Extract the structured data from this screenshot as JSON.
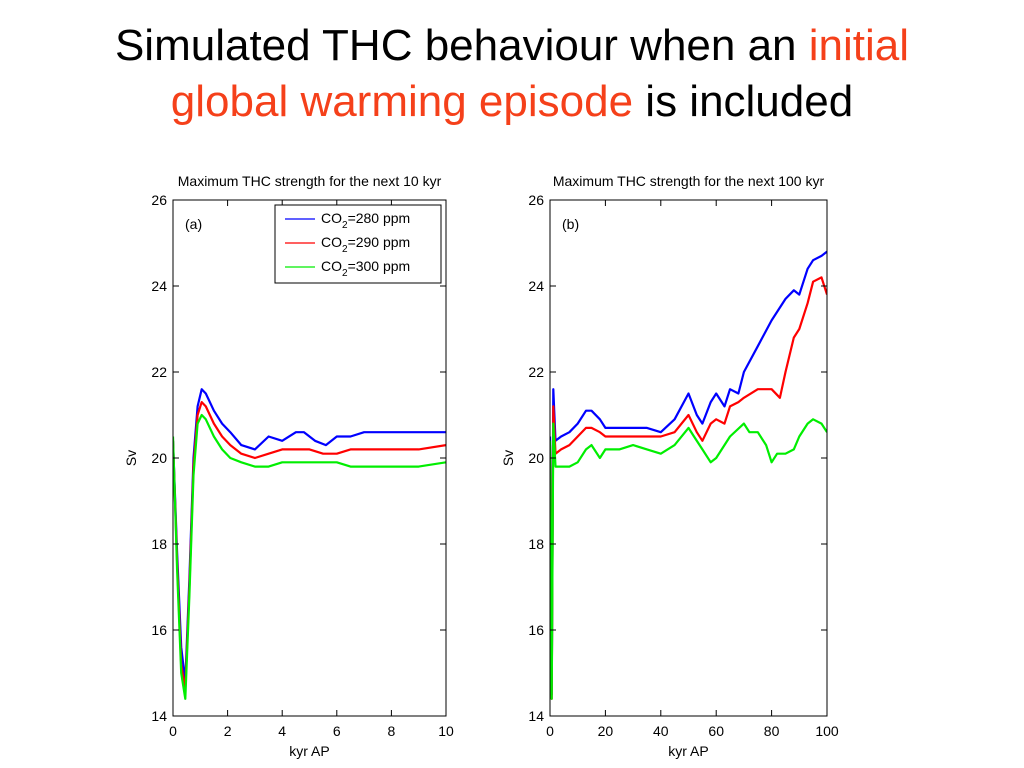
{
  "slide": {
    "title_line1_prefix": "Simulated THC behaviour when an ",
    "title_line1_highlight": "initial",
    "title_line2_highlight": "global warming episode",
    "title_line2_suffix": " is included",
    "highlight_color": "#f5401a"
  },
  "chart_data": [
    {
      "type": "line",
      "title": "Maximum THC strength for the next 10 kyr",
      "panel_label": "(a)",
      "xlabel": "kyr AP",
      "ylabel": "Sv",
      "xlim": [
        0,
        10
      ],
      "ylim": [
        14,
        26
      ],
      "xticks": [
        0,
        2,
        4,
        6,
        8,
        10
      ],
      "yticks": [
        14,
        16,
        18,
        20,
        22,
        24,
        26
      ],
      "grid": false,
      "legend": "top-right",
      "series": [
        {
          "legend_sub": "2",
          "legend_rest": "=280 ppm",
          "legend_base": "CO",
          "color": "#0000ff",
          "x": [
            0,
            0.15,
            0.3,
            0.45,
            0.6,
            0.75,
            0.9,
            1.05,
            1.2,
            1.5,
            1.8,
            2.1,
            2.5,
            3.0,
            3.5,
            4.0,
            4.5,
            4.8,
            5.2,
            5.6,
            6.0,
            6.5,
            7.0,
            8.0,
            9.0,
            10.0
          ],
          "y": [
            20.4,
            17.8,
            15.6,
            14.8,
            17.2,
            20.0,
            21.2,
            21.6,
            21.5,
            21.1,
            20.8,
            20.6,
            20.3,
            20.2,
            20.5,
            20.4,
            20.6,
            20.6,
            20.4,
            20.3,
            20.5,
            20.5,
            20.6,
            20.6,
            20.6,
            20.6
          ]
        },
        {
          "legend_base": "CO",
          "legend_sub": "2",
          "legend_rest": "=290 ppm",
          "color": "#ff0000",
          "x": [
            0,
            0.15,
            0.3,
            0.45,
            0.6,
            0.75,
            0.9,
            1.05,
            1.2,
            1.5,
            1.8,
            2.1,
            2.5,
            3.0,
            3.5,
            4.0,
            4.5,
            5.0,
            5.5,
            6.0,
            6.5,
            7.0,
            8.0,
            9.0,
            10.0
          ],
          "y": [
            20.4,
            17.6,
            15.2,
            14.6,
            17.0,
            19.8,
            21.0,
            21.3,
            21.2,
            20.8,
            20.5,
            20.3,
            20.1,
            20.0,
            20.1,
            20.2,
            20.2,
            20.2,
            20.1,
            20.1,
            20.2,
            20.2,
            20.2,
            20.2,
            20.3
          ]
        },
        {
          "legend_base": "CO",
          "legend_sub": "2",
          "legend_rest": "=300 ppm",
          "color": "#00ee00",
          "x": [
            0,
            0.15,
            0.3,
            0.45,
            0.6,
            0.75,
            0.9,
            1.05,
            1.2,
            1.5,
            1.8,
            2.1,
            2.5,
            3.0,
            3.5,
            4.0,
            4.5,
            5.0,
            5.5,
            6.0,
            6.5,
            7.0,
            8.0,
            9.0,
            10.0
          ],
          "y": [
            20.5,
            17.4,
            15.0,
            14.4,
            16.8,
            19.6,
            20.8,
            21.0,
            20.9,
            20.5,
            20.2,
            20.0,
            19.9,
            19.8,
            19.8,
            19.9,
            19.9,
            19.9,
            19.9,
            19.9,
            19.8,
            19.8,
            19.8,
            19.8,
            19.9
          ]
        }
      ]
    },
    {
      "type": "line",
      "title": "Maximum THC strength for the next 100 kyr",
      "panel_label": "(b)",
      "xlabel": "kyr AP",
      "ylabel": "Sv",
      "xlim": [
        0,
        100
      ],
      "ylim": [
        14,
        26
      ],
      "xticks": [
        0,
        20,
        40,
        60,
        80,
        100
      ],
      "yticks": [
        14,
        16,
        18,
        20,
        22,
        24,
        26
      ],
      "grid": false,
      "series": [
        {
          "color": "#0000ff",
          "x": [
            0,
            0.6,
            1.2,
            2,
            4,
            7,
            10,
            13,
            15,
            18,
            20,
            25,
            30,
            35,
            40,
            45,
            50,
            53,
            55,
            58,
            60,
            63,
            65,
            68,
            70,
            75,
            80,
            85,
            88,
            90,
            93,
            95,
            98,
            100
          ],
          "y": [
            20.5,
            14.5,
            21.6,
            20.4,
            20.5,
            20.6,
            20.8,
            21.1,
            21.1,
            20.9,
            20.7,
            20.7,
            20.7,
            20.7,
            20.6,
            20.9,
            21.5,
            21.0,
            20.8,
            21.3,
            21.5,
            21.2,
            21.6,
            21.5,
            22.0,
            22.6,
            23.2,
            23.7,
            23.9,
            23.8,
            24.4,
            24.6,
            24.7,
            24.8
          ]
        },
        {
          "color": "#ff0000",
          "x": [
            0,
            0.6,
            1.2,
            2,
            4,
            7,
            10,
            13,
            15,
            18,
            20,
            25,
            30,
            35,
            40,
            45,
            50,
            53,
            55,
            58,
            60,
            63,
            65,
            68,
            70,
            75,
            80,
            83,
            85,
            88,
            90,
            93,
            95,
            98,
            100
          ],
          "y": [
            20.3,
            14.4,
            21.2,
            20.1,
            20.2,
            20.3,
            20.5,
            20.7,
            20.7,
            20.6,
            20.5,
            20.5,
            20.5,
            20.5,
            20.5,
            20.6,
            21.0,
            20.6,
            20.4,
            20.8,
            20.9,
            20.8,
            21.2,
            21.3,
            21.4,
            21.6,
            21.6,
            21.4,
            22.0,
            22.8,
            23.0,
            23.6,
            24.1,
            24.2,
            23.8
          ]
        },
        {
          "color": "#00ee00",
          "x": [
            0,
            0.6,
            1.2,
            2,
            4,
            7,
            10,
            13,
            15,
            18,
            20,
            25,
            30,
            35,
            40,
            45,
            50,
            52,
            55,
            58,
            60,
            65,
            70,
            72,
            75,
            78,
            80,
            82,
            85,
            88,
            90,
            93,
            95,
            98,
            100
          ],
          "y": [
            20.4,
            14.4,
            20.8,
            19.8,
            19.8,
            19.8,
            19.9,
            20.2,
            20.3,
            20.0,
            20.2,
            20.2,
            20.3,
            20.2,
            20.1,
            20.3,
            20.7,
            20.5,
            20.2,
            19.9,
            20.0,
            20.5,
            20.8,
            20.6,
            20.6,
            20.3,
            19.9,
            20.1,
            20.1,
            20.2,
            20.5,
            20.8,
            20.9,
            20.8,
            20.6
          ]
        }
      ]
    }
  ]
}
